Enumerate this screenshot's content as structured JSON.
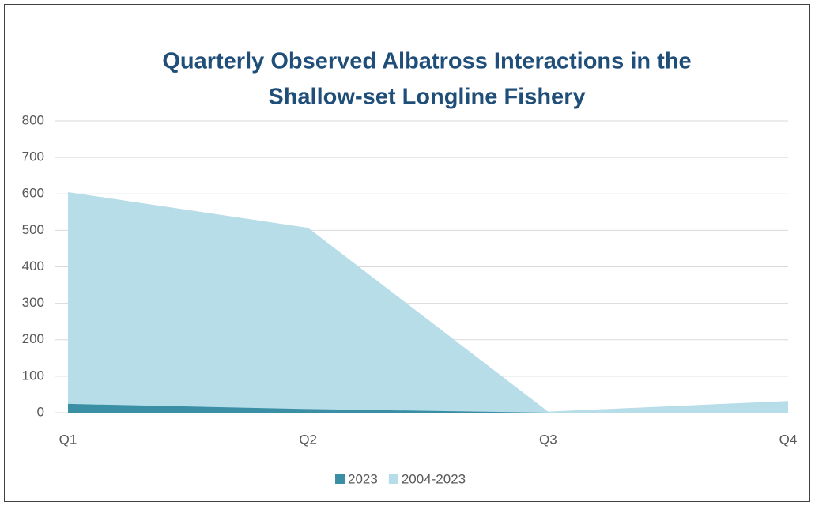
{
  "chart_data": {
    "type": "area",
    "title": [
      "Quarterly Observed Albatross Interactions in the",
      "Shallow-set Longline Fishery"
    ],
    "categories": [
      "Q1",
      "Q2",
      "Q3",
      "Q4"
    ],
    "series": [
      {
        "name": "2023",
        "color": "#3a8fa5",
        "values": [
          24,
          10,
          0,
          0
        ]
      },
      {
        "name": "2004-2023",
        "color": "#b7dde8",
        "values": [
          605,
          507,
          3,
          32
        ]
      }
    ],
    "ylim": [
      0,
      800
    ],
    "yticks": [
      0,
      100,
      200,
      300,
      400,
      500,
      600,
      700,
      800
    ],
    "grid": true,
    "legend": "bottom"
  }
}
